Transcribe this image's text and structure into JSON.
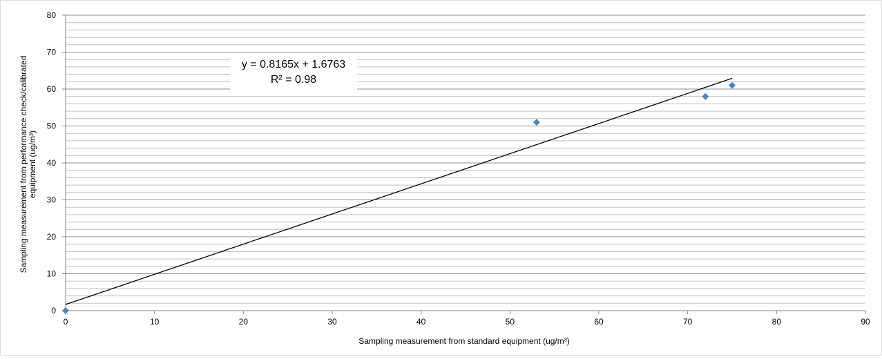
{
  "chart_data": {
    "type": "scatter",
    "xlabel": "Sampling measurement from standard equipment  (ug/m³)",
    "ylabel_line1": "Sampling measurement from performance check/calibrated",
    "ylabel_line2": "equipment (ug/m³)",
    "xlim": [
      0,
      90
    ],
    "ylim": [
      0,
      80
    ],
    "x_ticks": [
      "0",
      "10",
      "20",
      "30",
      "40",
      "50",
      "60",
      "70",
      "80",
      "90"
    ],
    "y_ticks": [
      "0",
      "10",
      "20",
      "30",
      "40",
      "50",
      "60",
      "70",
      "80"
    ],
    "grid": true,
    "series": [
      {
        "points": [
          {
            "x": 0,
            "y": 0
          },
          {
            "x": 53,
            "y": 51
          },
          {
            "x": 72,
            "y": 58
          },
          {
            "x": 75,
            "y": 61
          }
        ],
        "color": "#4f81bd",
        "marker": "diamond"
      }
    ],
    "trendline": {
      "slope": 0.8165,
      "intercept": 1.6763,
      "x_range": [
        0,
        75
      ],
      "equation": "y = 0.8165x + 1.6763",
      "r_squared": "R² = 0.98",
      "color": "#000000"
    }
  }
}
